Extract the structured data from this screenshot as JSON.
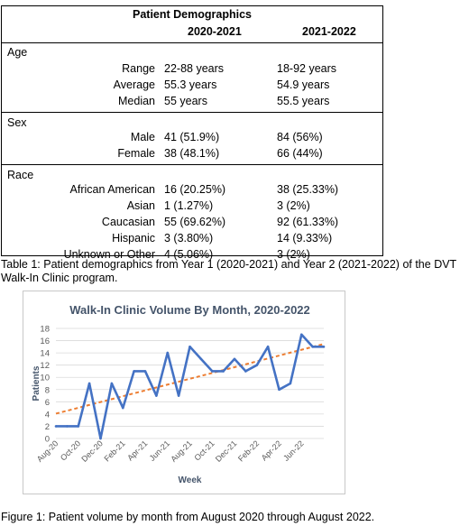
{
  "table": {
    "title": "Patient Demographics",
    "col1": "2020-2021",
    "col2": "2021-2022",
    "sections": [
      {
        "label": "Age",
        "rows": [
          {
            "label": "Range",
            "v1": "22-88 years",
            "v2": "18-92 years"
          },
          {
            "label": "Average",
            "v1": "55.3 years",
            "v2": "54.9 years"
          },
          {
            "label": "Median",
            "v1": "55 years",
            "v2": "55.5 years"
          }
        ]
      },
      {
        "label": "Sex",
        "rows": [
          {
            "label": "Male",
            "v1": "41 (51.9%)",
            "v2": "84 (56%)"
          },
          {
            "label": "Female",
            "v1": "38 (48.1%)",
            "v2": "66 (44%)"
          }
        ]
      },
      {
        "label": "Race",
        "rows": [
          {
            "label": "African American",
            "v1": "16 (20.25%)",
            "v2": "38 (25.33%)"
          },
          {
            "label": "Asian",
            "v1": "1 (1.27%)",
            "v2": "3 (2%)"
          },
          {
            "label": "Caucasian",
            "v1": "55 (69.62%)",
            "v2": "92 (61.33%)"
          },
          {
            "label": "Hispanic",
            "v1": "3 (3.80%)",
            "v2": "14 (9.33%)"
          },
          {
            "label": "Unknown or Other",
            "v1": "4 (5.06%)",
            "v2": "3 (2%)"
          }
        ]
      }
    ]
  },
  "table_caption": "Table 1: Patient demographics from Year 1 (2020-2021) and Year 2 (2021-2022) of the DVT Walk-In Clinic program.",
  "figure_caption": "Figure 1: Patient volume by month from August 2020 through August 2022.",
  "chart_data": {
    "type": "line",
    "title": "Walk-In Clinic Volume By Month, 2020-2022",
    "xlabel": "Week",
    "ylabel": "Patients",
    "ylim": [
      0,
      18
    ],
    "yticks": [
      0,
      2,
      4,
      6,
      8,
      10,
      12,
      14,
      16,
      18
    ],
    "grid": true,
    "trendline": true,
    "x": [
      "Aug-20",
      "Sep-20",
      "Oct-20",
      "Nov-20",
      "Dec-20",
      "Jan-21",
      "Feb-21",
      "Mar-21",
      "Apr-21",
      "May-21",
      "Jun-21",
      "Jul-21",
      "Aug-21",
      "Sep-21",
      "Oct-21",
      "Nov-21",
      "Dec-21",
      "Jan-22",
      "Feb-22",
      "Mar-22",
      "Apr-22",
      "May-22",
      "Jun-22",
      "Jul-22",
      "Aug-22"
    ],
    "xtick_labels": [
      "Aug-20",
      "Oct-20",
      "Dec-20",
      "Feb-21",
      "Apr-21",
      "Jun-21",
      "Aug-21",
      "Oct-21",
      "Dec-21",
      "Feb-22",
      "Apr-22",
      "Jun-22"
    ],
    "series": [
      {
        "values": [
          2,
          2,
          2,
          9,
          0,
          9,
          5,
          11,
          11,
          7,
          14,
          7,
          15,
          13,
          11,
          11,
          13,
          11,
          12,
          15,
          8,
          9,
          17,
          15,
          15
        ]
      }
    ],
    "colors": {
      "line": "#4472C4",
      "trend": "#ED7D31",
      "title": "#44546A",
      "grid": "#d9d9d9",
      "axis_text": "#595959"
    }
  }
}
